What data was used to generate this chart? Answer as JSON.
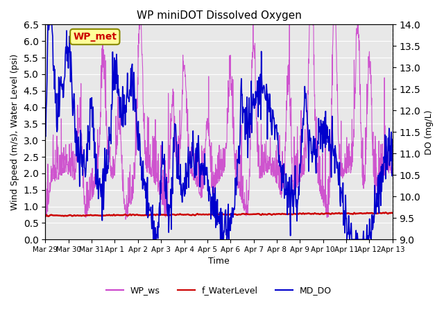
{
  "title": "WP miniDOT Dissolved Oxygen",
  "xlabel": "Time",
  "ylabel_left": "Wind Speed (m/s), Water Level (psi)",
  "ylabel_right": "DO (mg/L)",
  "ylim_left": [
    0.0,
    6.5
  ],
  "ylim_right": [
    9.0,
    14.0
  ],
  "yticks_left": [
    0.0,
    0.5,
    1.0,
    1.5,
    2.0,
    2.5,
    3.0,
    3.5,
    4.0,
    4.5,
    5.0,
    5.5,
    6.0,
    6.5
  ],
  "yticks_right": [
    9.0,
    9.5,
    10.0,
    10.5,
    11.0,
    11.5,
    12.0,
    12.5,
    13.0,
    13.5,
    14.0
  ],
  "xtick_labels": [
    "Mar 29",
    "Mar 30",
    "Mar 31",
    "Apr 1",
    "Apr 2",
    "Apr 3",
    "Apr 4",
    "Apr 5",
    "Apr 6",
    "Apr 7",
    "Apr 8",
    "Apr 9",
    "Apr 10",
    "Apr 11",
    "Apr 12",
    "Apr 13"
  ],
  "color_ws": "#CC44CC",
  "color_wl": "#CC0000",
  "color_do": "#0000CC",
  "wp_met_label": "WP_met",
  "wp_met_bg": "#FFFF99",
  "wp_met_border": "#888800",
  "wp_met_text_color": "#CC0000",
  "legend_labels": [
    "WP_ws",
    "f_WaterLevel",
    "MD_DO"
  ],
  "background_color": "#E8E8E8",
  "fig_background": "#FFFFFF",
  "seed": 42
}
